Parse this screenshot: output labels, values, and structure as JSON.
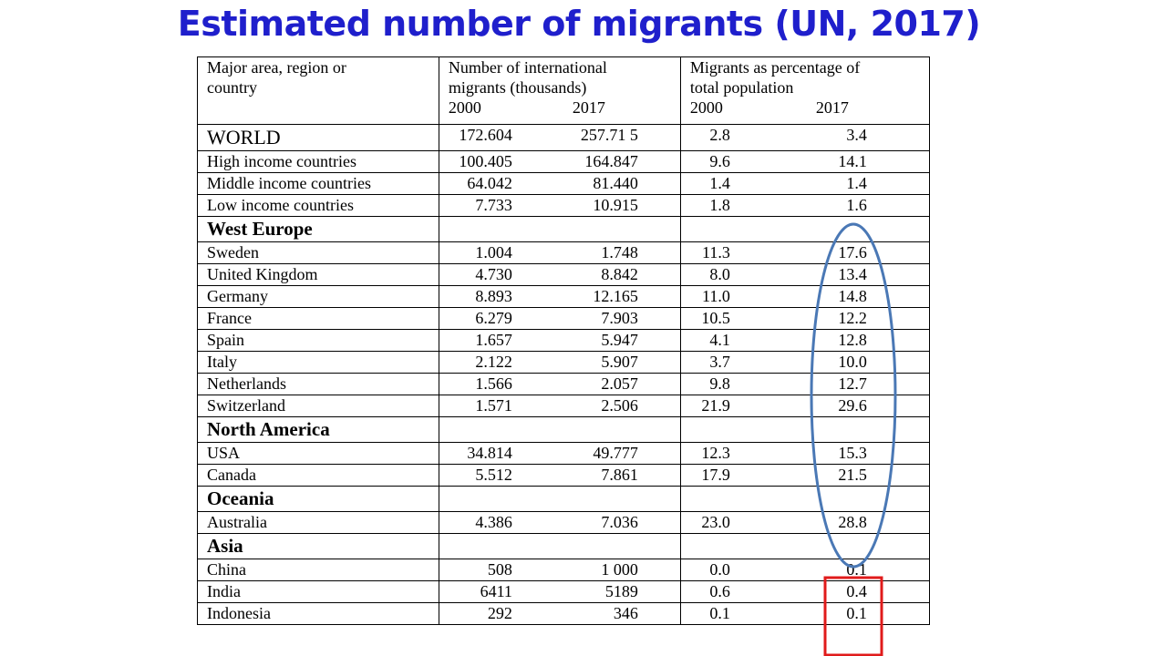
{
  "title": "Estimated number of migrants (UN, 2017)",
  "table": {
    "headers": {
      "col1": [
        "Major area, region or",
        "country"
      ],
      "col2": [
        "Number of international",
        "migrants (thousands)"
      ],
      "col3": [
        "Migrants as percentage of",
        "total population"
      ],
      "year_a": "2000",
      "year_b": "2017"
    },
    "rows": [
      {
        "name": "WORLD",
        "type": "world",
        "n2000": "172.604",
        "n2017": "257.71 5",
        "p2000": "2.8",
        "p2017": "3.4"
      },
      {
        "name": "High income countries",
        "type": "data",
        "n2000": "100.405",
        "n2017": "164.847",
        "p2000": "9.6",
        "p2017": "14.1"
      },
      {
        "name": "Middle income countries",
        "type": "data",
        "n2000": "64.042",
        "n2017": "81.440",
        "p2000": "1.4",
        "p2017": "1.4"
      },
      {
        "name": "Low income countries",
        "type": "data",
        "n2000": "7.733",
        "n2017": "10.915",
        "p2000": "1.8",
        "p2017": "1.6"
      },
      {
        "name": "West Europe",
        "type": "region"
      },
      {
        "name": "Sweden",
        "type": "data",
        "n2000": "1.004",
        "n2017": "1.748",
        "p2000": "11.3",
        "p2017": "17.6"
      },
      {
        "name": "United Kingdom",
        "type": "data",
        "n2000": "4.730",
        "n2017": "8.842",
        "p2000": "8.0",
        "p2017": "13.4"
      },
      {
        "name": "Germany",
        "type": "data",
        "n2000": "8.893",
        "n2017": "12.165",
        "p2000": "11.0",
        "p2017": "14.8"
      },
      {
        "name": "France",
        "type": "data",
        "n2000": "6.279",
        "n2017": "7.903",
        "p2000": "10.5",
        "p2017": "12.2"
      },
      {
        "name": "Spain",
        "type": "data",
        "n2000": "1.657",
        "n2017": "5.947",
        "p2000": "4.1",
        "p2017": "12.8"
      },
      {
        "name": "Italy",
        "type": "data",
        "n2000": "2.122",
        "n2017": "5.907",
        "p2000": "3.7",
        "p2017": "10.0"
      },
      {
        "name": "Netherlands",
        "type": "data",
        "n2000": "1.566",
        "n2017": "2.057",
        "p2000": "9.8",
        "p2017": "12.7"
      },
      {
        "name": "Switzerland",
        "type": "data",
        "n2000": "1.571",
        "n2017": "2.506",
        "p2000": "21.9",
        "p2017": "29.6"
      },
      {
        "name": "North America",
        "type": "region"
      },
      {
        "name": "USA",
        "type": "data",
        "n2000": "34.814",
        "n2017": "49.777",
        "p2000": "12.3",
        "p2017": "15.3"
      },
      {
        "name": "Canada",
        "type": "data",
        "n2000": "5.512",
        "n2017": "7.861",
        "p2000": "17.9",
        "p2017": "21.5"
      },
      {
        "name": "Oceania",
        "type": "region"
      },
      {
        "name": "Australia",
        "type": "data",
        "n2000": "4.386",
        "n2017": "7.036",
        "p2000": "23.0",
        "p2017": "28.8"
      },
      {
        "name": "Asia",
        "type": "region"
      },
      {
        "name": "China",
        "type": "data",
        "n2000": "508",
        "n2017": "1 000",
        "p2000": "0.0",
        "p2017": "0.1"
      },
      {
        "name": "India",
        "type": "data",
        "n2000": "6411",
        "n2017": "5189",
        "p2000": "0.6",
        "p2017": "0.4"
      },
      {
        "name": "Indonesia",
        "type": "data",
        "n2000": "292",
        "n2017": "346",
        "p2000": "0.1",
        "p2017": "0.1"
      }
    ]
  },
  "annotations": {
    "ellipse_color": "#4a78b5",
    "box_color": "#e01b1b"
  }
}
